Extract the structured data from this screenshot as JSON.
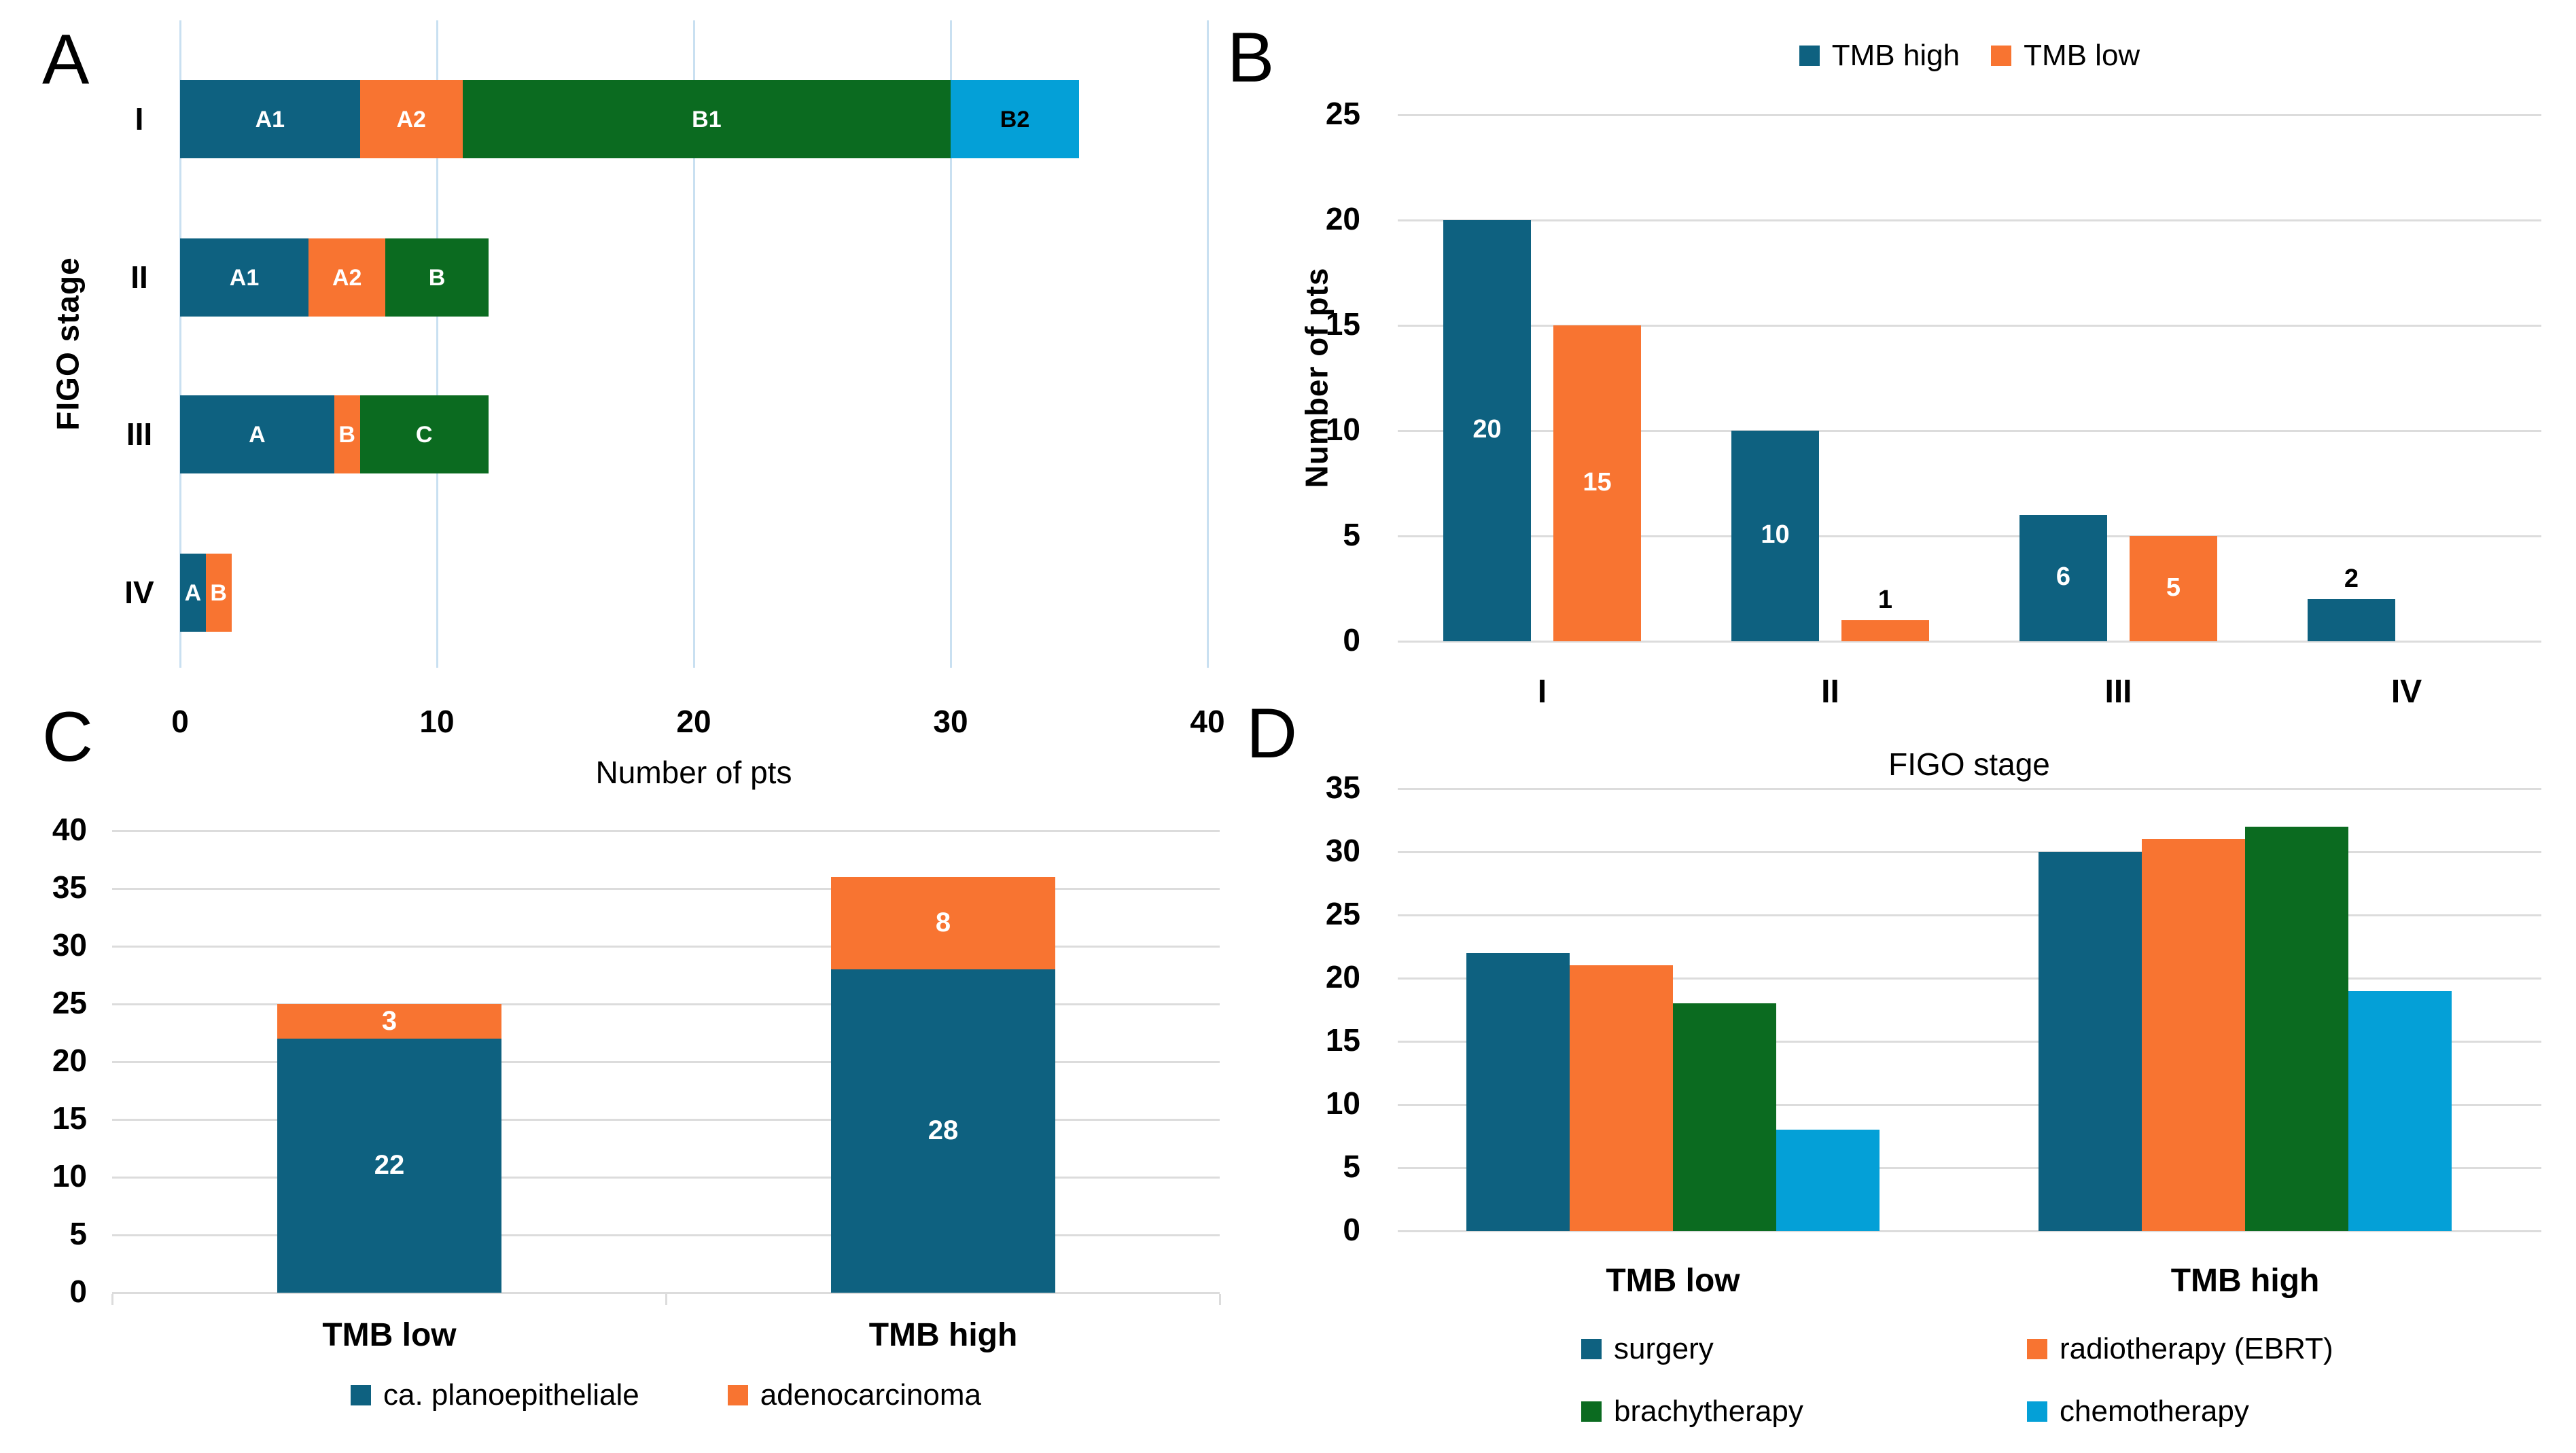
{
  "figure": {
    "background": "#FFFFFF",
    "panel_letters": {
      "a": "A",
      "b": "B",
      "c": "C",
      "d": "D"
    }
  },
  "colors": {
    "series_blue": "#0E6180",
    "series_orange": "#F87431",
    "series_green": "#0B6B20",
    "series_lightblue": "#04A0D7",
    "grid_blue": "#C9E0F1",
    "grid_gray": "#DCDCDC",
    "text": "#000000",
    "label_on_dark": "#FFFFFF",
    "label_dark": "#000000"
  },
  "chart_data": [
    {
      "panel": "A",
      "type": "bar",
      "subtype": "horizontal-stacked",
      "title": "",
      "xlabel": "Number of pts",
      "ylabel": "FIGO stage",
      "xlim": [
        0,
        40
      ],
      "xticks": [
        0,
        10,
        20,
        30,
        40
      ],
      "grid": "vertical",
      "gridline_color": "grid_blue",
      "categories": [
        "I",
        "II",
        "III",
        "IV"
      ],
      "rows": [
        {
          "category": "I",
          "segments": [
            {
              "label": "A1",
              "value": 7,
              "color": "blue",
              "label_color": "#FFFFFF"
            },
            {
              "label": "A2",
              "value": 4,
              "color": "orange",
              "label_color": "#FFFFFF"
            },
            {
              "label": "B1",
              "value": 19,
              "color": "green",
              "label_color": "#FFFFFF"
            },
            {
              "label": "B2",
              "value": 5,
              "color": "lightblue",
              "label_color": "#000000"
            }
          ]
        },
        {
          "category": "II",
          "segments": [
            {
              "label": "A1",
              "value": 5,
              "color": "blue",
              "label_color": "#FFFFFF"
            },
            {
              "label": "A2",
              "value": 3,
              "color": "orange",
              "label_color": "#FFFFFF"
            },
            {
              "label": "B",
              "value": 4,
              "color": "green",
              "label_color": "#FFFFFF"
            }
          ]
        },
        {
          "category": "III",
          "segments": [
            {
              "label": "A",
              "value": 6,
              "color": "blue",
              "label_color": "#FFFFFF"
            },
            {
              "label": "B",
              "value": 1,
              "color": "orange",
              "label_color": "#FFFFFF"
            },
            {
              "label": "C",
              "value": 5,
              "color": "green",
              "label_color": "#FFFFFF"
            }
          ]
        },
        {
          "category": "IV",
          "segments": [
            {
              "label": "A",
              "value": 1,
              "color": "blue",
              "label_color": "#FFFFFF"
            },
            {
              "label": "B",
              "value": 1,
              "color": "orange",
              "label_color": "#FFFFFF"
            }
          ]
        }
      ]
    },
    {
      "panel": "B",
      "type": "bar",
      "subtype": "grouped",
      "title": "",
      "xlabel": "FIGO stage",
      "ylabel": "Number of pts",
      "ylim": [
        0,
        25
      ],
      "yticks": [
        0,
        5,
        10,
        15,
        20,
        25
      ],
      "grid": "horizontal",
      "gridline_color": "grid_gray",
      "legend_position": "top",
      "categories": [
        "I",
        "II",
        "III",
        "IV"
      ],
      "series": [
        {
          "name": "TMB high",
          "color": "blue",
          "values": [
            20,
            10,
            6,
            2
          ]
        },
        {
          "name": "TMB low",
          "color": "orange",
          "values": [
            15,
            1,
            5,
            null
          ]
        }
      ],
      "data_labels": "values >= 5 inside bars in white; smaller values above bars in black",
      "inside_label_threshold": 5
    },
    {
      "panel": "C",
      "type": "bar",
      "subtype": "stacked",
      "title": "",
      "xlabel": "",
      "ylabel": "",
      "ylim": [
        0,
        40
      ],
      "yticks": [
        0,
        5,
        10,
        15,
        20,
        25,
        30,
        35,
        40
      ],
      "grid": "horizontal",
      "gridline_color": "grid_gray",
      "legend_position": "bottom",
      "categories": [
        "TMB low",
        "TMB high"
      ],
      "series": [
        {
          "name": "ca. planoepitheliale",
          "color": "blue",
          "values": [
            22,
            28
          ]
        },
        {
          "name": "adenocarcinoma",
          "color": "orange",
          "values": [
            3,
            8
          ]
        }
      ],
      "data_labels": "all values inside segments in white"
    },
    {
      "panel": "D",
      "type": "bar",
      "subtype": "grouped",
      "title": "",
      "xlabel": "",
      "ylabel": "",
      "ylim": [
        0,
        35
      ],
      "yticks": [
        0,
        5,
        10,
        15,
        20,
        25,
        30,
        35
      ],
      "grid": "horizontal",
      "gridline_color": "grid_gray",
      "legend_position": "bottom-2x2",
      "categories": [
        "TMB low",
        "TMB high"
      ],
      "series": [
        {
          "name": "surgery",
          "color": "blue",
          "values": [
            22,
            30
          ]
        },
        {
          "name": "radiotherapy (EBRT)",
          "color": "orange",
          "values": [
            21,
            31
          ]
        },
        {
          "name": "brachytherapy",
          "color": "green",
          "values": [
            18,
            32
          ]
        },
        {
          "name": "chemotherapy",
          "color": "lightblue",
          "values": [
            8,
            19
          ]
        }
      ],
      "data_labels": "none"
    }
  ]
}
